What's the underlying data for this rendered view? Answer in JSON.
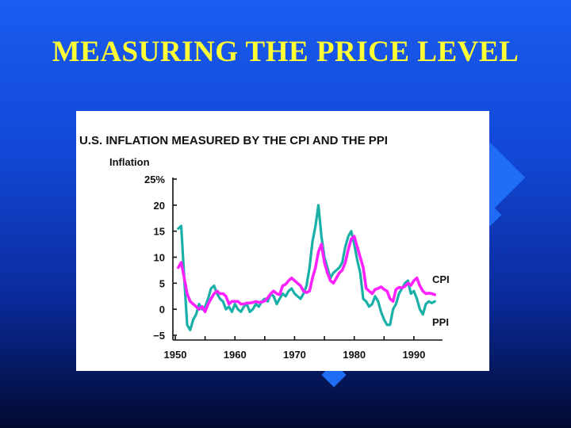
{
  "slide": {
    "title": "MEASURING THE PRICE LEVEL"
  },
  "colors": {
    "background": "#1248d8",
    "title": "#ffff33",
    "cpi": "#ff22ff",
    "ppi": "#1ab0a8"
  },
  "chart_data": {
    "type": "line",
    "title": "U.S. INFLATION MEASURED BY THE CPI AND THE PPI",
    "xlabel": "",
    "ylabel": "Inflation",
    "xlim": [
      1950,
      1994
    ],
    "ylim": [
      -5,
      25
    ],
    "x_ticks": [
      1950,
      1960,
      1970,
      1980,
      1990
    ],
    "y_ticks": [
      {
        "value": 25,
        "label": "25%"
      },
      {
        "value": 20,
        "label": "20"
      },
      {
        "value": 15,
        "label": "15"
      },
      {
        "value": 10,
        "label": "10"
      },
      {
        "value": 5,
        "label": "5"
      },
      {
        "value": 0,
        "label": "0"
      },
      {
        "value": -5,
        "label": "−5"
      }
    ],
    "series": [
      {
        "name": "CPI",
        "label": "CPI",
        "x": [
          1950.5,
          1951,
          1951.5,
          1952,
          1952.5,
          1953,
          1953.5,
          1954,
          1954.5,
          1955,
          1955.5,
          1956,
          1956.5,
          1957,
          1957.5,
          1958,
          1958.5,
          1959,
          1959.5,
          1960,
          1960.5,
          1961,
          1961.5,
          1962,
          1962.5,
          1963,
          1963.5,
          1964,
          1964.5,
          1965,
          1965.5,
          1966,
          1966.5,
          1967,
          1967.5,
          1968,
          1968.5,
          1969,
          1969.5,
          1970,
          1970.5,
          1971,
          1971.5,
          1972,
          1972.5,
          1973,
          1973.5,
          1974,
          1974.5,
          1975,
          1975.5,
          1976,
          1976.5,
          1977,
          1977.5,
          1978,
          1978.5,
          1979,
          1979.5,
          1980,
          1980.5,
          1981,
          1981.5,
          1982,
          1982.5,
          1983,
          1983.5,
          1984,
          1984.5,
          1985,
          1985.5,
          1986,
          1986.5,
          1987,
          1987.5,
          1988,
          1988.5,
          1989,
          1989.5,
          1990,
          1990.5,
          1991,
          1991.5,
          1992,
          1992.5,
          1993,
          1993.5
        ],
        "values": [
          8,
          9,
          6,
          3,
          1.5,
          1,
          0.5,
          0,
          0.5,
          -0.5,
          1,
          2,
          3,
          3.5,
          3,
          3,
          2.5,
          1,
          1.5,
          1.5,
          1.5,
          1,
          1,
          1.2,
          1.2,
          1.3,
          1.5,
          1.3,
          1.4,
          1.6,
          2.2,
          3,
          3.5,
          3,
          2.8,
          4.5,
          4.8,
          5.5,
          6,
          5.5,
          5,
          4.5,
          3.5,
          3.2,
          3.5,
          6,
          8,
          11,
          12.5,
          9,
          7,
          5.5,
          5,
          6,
          7,
          7.5,
          9,
          11.5,
          13.5,
          14,
          12,
          10,
          8,
          4,
          3.5,
          3,
          3.8,
          4,
          4.3,
          3.8,
          3.5,
          2,
          1.5,
          3.8,
          4.2,
          4.1,
          4.4,
          5,
          4.6,
          5.5,
          6,
          4.5,
          3.5,
          3,
          3.1,
          3,
          2.8
        ]
      },
      {
        "name": "PPI",
        "label": "PPI",
        "x": [
          1950.5,
          1951,
          1951.5,
          1952,
          1952.5,
          1953,
          1953.5,
          1954,
          1954.5,
          1955,
          1955.5,
          1956,
          1956.5,
          1957,
          1957.5,
          1958,
          1958.5,
          1959,
          1959.5,
          1960,
          1960.5,
          1961,
          1961.5,
          1962,
          1962.5,
          1963,
          1963.5,
          1964,
          1964.5,
          1965,
          1965.5,
          1966,
          1966.5,
          1967,
          1967.5,
          1968,
          1968.5,
          1969,
          1969.5,
          1970,
          1970.5,
          1971,
          1971.5,
          1972,
          1972.5,
          1973,
          1973.5,
          1974,
          1974.5,
          1975,
          1975.5,
          1976,
          1976.5,
          1977,
          1977.5,
          1978,
          1978.5,
          1979,
          1979.5,
          1980,
          1980.5,
          1981,
          1981.5,
          1982,
          1982.5,
          1983,
          1983.5,
          1984,
          1984.5,
          1985,
          1985.5,
          1986,
          1986.5,
          1987,
          1987.5,
          1988,
          1988.5,
          1989,
          1989.5,
          1990,
          1990.5,
          1991,
          1991.5,
          1992,
          1992.5,
          1993,
          1993.5
        ],
        "values": [
          15.5,
          16,
          6,
          -3,
          -4,
          -2,
          -1,
          1,
          0,
          0.5,
          2,
          4,
          4.5,
          3,
          2,
          1.5,
          0,
          0.5,
          -0.5,
          1,
          0,
          -0.5,
          0.5,
          1,
          -0.5,
          0,
          1,
          0.5,
          1.5,
          2,
          1.5,
          3,
          2.5,
          1,
          2,
          3,
          2.5,
          3.5,
          4,
          3,
          2.5,
          2,
          3,
          4.5,
          8,
          13,
          16,
          20,
          14,
          10,
          8,
          6,
          7,
          7.5,
          8,
          9,
          12,
          14,
          15,
          12.5,
          9.5,
          7,
          2,
          1.5,
          0.5,
          1,
          2.5,
          1.5,
          -0.5,
          -2,
          -3,
          -3,
          0,
          1,
          3,
          4,
          5,
          5.5,
          3,
          3.5,
          2,
          0,
          -1,
          1,
          1.5,
          1.2,
          1.5
        ]
      }
    ]
  }
}
